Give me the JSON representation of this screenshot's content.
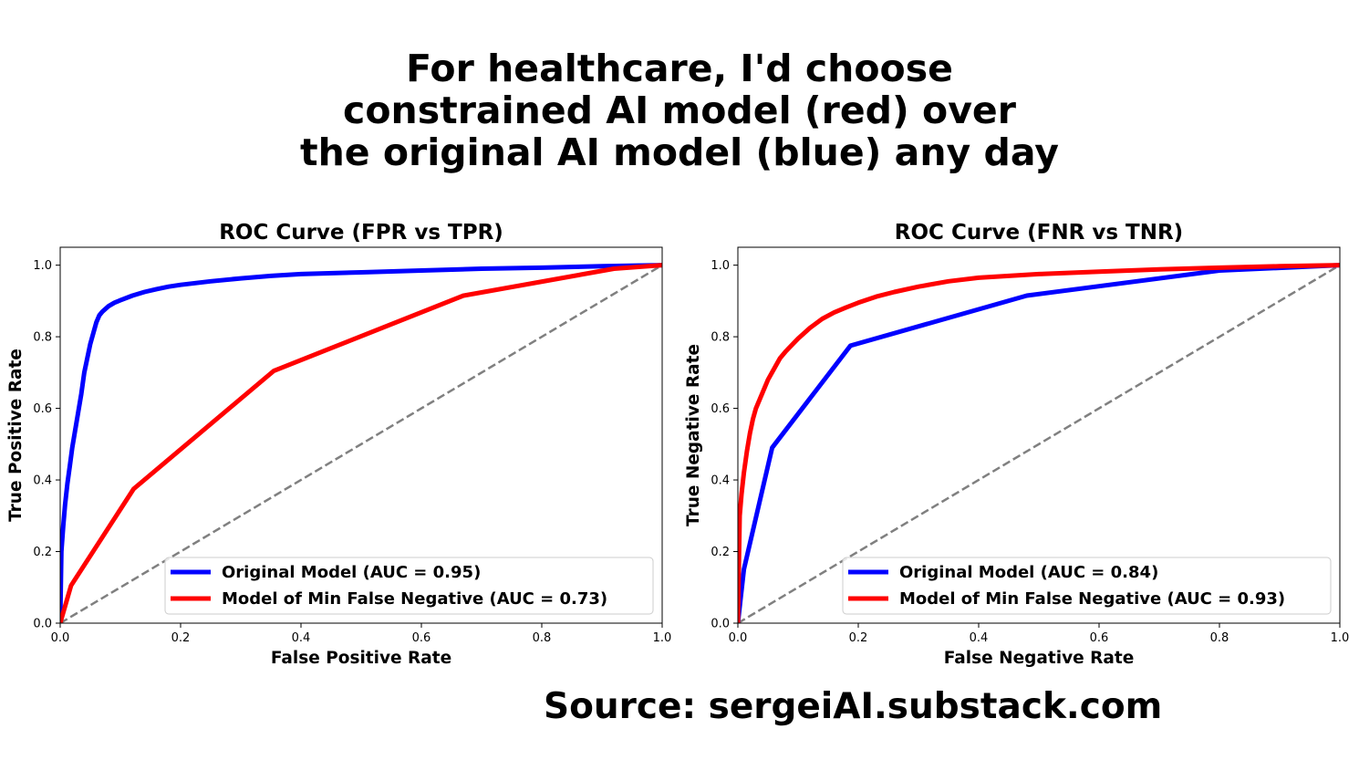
{
  "suptitle": {
    "lines": [
      "For healthcare, I'd choose",
      "constrained AI model (red) over",
      "the original AI model (blue) any day"
    ]
  },
  "source": "Source: sergeiAI.substack.com",
  "colors": {
    "blue": "#0000ff",
    "red": "#ff0000",
    "diagonal": "#808080"
  },
  "chart_data": [
    {
      "type": "line",
      "title": "ROC Curve (FPR vs TPR)",
      "xlabel": "False Positive Rate",
      "ylabel": "True Positive Rate",
      "xlim": [
        0,
        1.0
      ],
      "ylim": [
        0,
        1.05
      ],
      "xticks": [
        "0.0",
        "0.2",
        "0.4",
        "0.6",
        "0.8",
        "1.0"
      ],
      "yticks": [
        "0.0",
        "0.2",
        "0.4",
        "0.6",
        "0.8",
        "1.0"
      ],
      "grid": false,
      "legend_position": "lower-right",
      "diagonal": [
        [
          0,
          0
        ],
        [
          1,
          1
        ]
      ],
      "series": [
        {
          "name": "Original Model (AUC = 0.95)",
          "color": "#0000ff",
          "x": [
            0,
            0.002,
            0.005,
            0.008,
            0.012,
            0.016,
            0.02,
            0.025,
            0.03,
            0.035,
            0.04,
            0.045,
            0.05,
            0.055,
            0.06,
            0.065,
            0.07,
            0.08,
            0.09,
            0.1,
            0.12,
            0.14,
            0.16,
            0.18,
            0.2,
            0.25,
            0.3,
            0.35,
            0.4,
            0.5,
            0.6,
            0.7,
            0.8,
            0.9,
            1.0
          ],
          "y": [
            0,
            0.2,
            0.27,
            0.33,
            0.39,
            0.44,
            0.49,
            0.54,
            0.59,
            0.64,
            0.7,
            0.74,
            0.78,
            0.81,
            0.84,
            0.86,
            0.87,
            0.885,
            0.895,
            0.902,
            0.915,
            0.925,
            0.933,
            0.94,
            0.945,
            0.955,
            0.963,
            0.97,
            0.975,
            0.98,
            0.985,
            0.99,
            0.993,
            0.997,
            1.0
          ]
        },
        {
          "name": "Model of Min False Negative (AUC = 0.73)",
          "color": "#ff0000",
          "x": [
            0,
            0.018,
            0.122,
            0.355,
            0.67,
            0.92,
            1.0
          ],
          "y": [
            0,
            0.105,
            0.375,
            0.705,
            0.915,
            0.99,
            1.0
          ]
        }
      ]
    },
    {
      "type": "line",
      "title": "ROC Curve (FNR vs TNR)",
      "xlabel": "False Negative Rate",
      "ylabel": "True Negative Rate",
      "xlim": [
        0,
        1.0
      ],
      "ylim": [
        0,
        1.05
      ],
      "xticks": [
        "0.0",
        "0.2",
        "0.4",
        "0.6",
        "0.8",
        "1.0"
      ],
      "yticks": [
        "0.0",
        "0.2",
        "0.4",
        "0.6",
        "0.8",
        "1.0"
      ],
      "grid": false,
      "legend_position": "lower-right",
      "diagonal": [
        [
          0,
          0
        ],
        [
          1,
          1
        ]
      ],
      "series": [
        {
          "name": "Original Model (AUC = 0.84)",
          "color": "#0000ff",
          "x": [
            0,
            0.01,
            0.057,
            0.187,
            0.48,
            0.8,
            1.0
          ],
          "y": [
            0,
            0.15,
            0.49,
            0.775,
            0.915,
            0.985,
            1.0
          ]
        },
        {
          "name": "Model of Min False Negative (AUC = 0.93)",
          "color": "#ff0000",
          "x": [
            0,
            0.003,
            0.006,
            0.01,
            0.015,
            0.02,
            0.025,
            0.03,
            0.04,
            0.05,
            0.06,
            0.07,
            0.08,
            0.1,
            0.12,
            0.14,
            0.16,
            0.18,
            0.2,
            0.23,
            0.26,
            0.3,
            0.35,
            0.4,
            0.5,
            0.6,
            0.7,
            0.8,
            0.9,
            1.0
          ],
          "y": [
            0,
            0.3,
            0.36,
            0.42,
            0.48,
            0.53,
            0.57,
            0.6,
            0.64,
            0.68,
            0.71,
            0.74,
            0.76,
            0.795,
            0.825,
            0.85,
            0.868,
            0.882,
            0.895,
            0.912,
            0.925,
            0.94,
            0.955,
            0.965,
            0.975,
            0.982,
            0.988,
            0.993,
            0.997,
            1.0
          ]
        }
      ]
    }
  ]
}
